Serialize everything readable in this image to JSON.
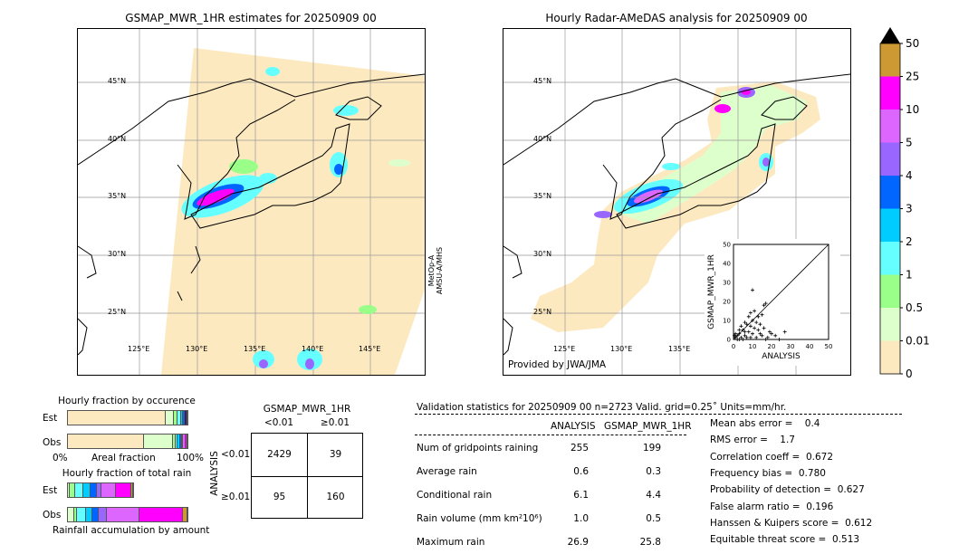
{
  "left_map": {
    "title": "GSMAP_MWR_1HR estimates for 20250909 00",
    "side_label": "MetOp-A\nAMSU-A/MHS",
    "lat_labels": [
      "45°N",
      "40°N",
      "35°N",
      "30°N",
      "25°N"
    ],
    "lon_labels": [
      "125°E",
      "130°E",
      "135°E",
      "140°E",
      "145°E"
    ]
  },
  "right_map": {
    "title": "Hourly Radar-AMeDAS analysis for 20250909 00",
    "credit": "Provided by JWA/JMA",
    "lat_labels": [
      "45°N",
      "40°N",
      "35°N",
      "30°N",
      "25°N"
    ],
    "lon_labels": [
      "125°E",
      "130°E",
      "135°E"
    ]
  },
  "colorbar": {
    "labels": [
      "50",
      "25",
      "10",
      "5",
      "4",
      "3",
      "2",
      "1",
      "0.5",
      "0.01",
      "0"
    ],
    "colors": [
      "#fde9c0",
      "#ddffcc",
      "#99ff88",
      "#66ffff",
      "#00ccff",
      "#0066ff",
      "#9966ff",
      "#dd66ff",
      "#ff00ff",
      "#cc9933"
    ],
    "over_color": "#000000"
  },
  "chart_data": [
    {
      "type": "scatter",
      "xlabel": "ANALYSIS",
      "ylabel": "GSMAP_MWR_1HR",
      "xlim": [
        0,
        50
      ],
      "ylim": [
        0,
        50
      ],
      "xticks": [
        "0",
        "10",
        "20",
        "30",
        "40",
        "50"
      ],
      "yticks": [
        "0",
        "10",
        "20",
        "30",
        "40",
        "50"
      ],
      "points": [
        [
          10,
          26
        ],
        [
          17,
          19
        ],
        [
          16,
          18
        ],
        [
          11,
          15
        ],
        [
          9,
          14
        ],
        [
          8,
          12
        ],
        [
          13,
          12
        ],
        [
          15,
          13
        ],
        [
          10,
          10
        ],
        [
          6,
          9
        ],
        [
          12,
          9
        ],
        [
          7,
          8
        ],
        [
          14,
          8
        ],
        [
          9,
          7
        ],
        [
          4,
          7
        ],
        [
          11,
          6
        ],
        [
          16,
          6
        ],
        [
          5,
          5
        ],
        [
          13,
          5
        ],
        [
          19,
          4
        ],
        [
          8,
          4
        ],
        [
          27,
          4
        ],
        [
          20,
          3
        ],
        [
          3,
          3
        ],
        [
          15,
          2
        ],
        [
          22,
          2
        ],
        [
          6,
          2
        ],
        [
          2,
          2
        ],
        [
          24,
          0
        ],
        [
          17,
          0
        ],
        [
          12,
          1
        ],
        [
          9,
          1
        ],
        [
          4,
          1
        ],
        [
          1,
          1
        ],
        [
          2,
          0
        ],
        [
          3,
          0
        ],
        [
          5,
          0
        ],
        [
          7,
          1
        ],
        [
          1,
          3
        ],
        [
          0.5,
          2
        ],
        [
          3,
          5
        ],
        [
          6,
          4
        ],
        [
          10,
          3
        ],
        [
          14,
          3
        ],
        [
          18,
          1
        ]
      ]
    },
    {
      "type": "bar",
      "title": "Hourly fraction by occurence",
      "categories": [
        "Est",
        "Obs"
      ],
      "xlabel": "Areal fraction",
      "xticks": [
        "0%",
        "100%"
      ],
      "series": {
        "Est": [
          82,
          7,
          3,
          2.5,
          2,
          1.5,
          2
        ],
        "Obs": [
          64,
          24,
          2,
          2,
          1.7,
          1.5,
          1,
          2,
          1.8
        ]
      },
      "colors_est": [
        "#fde9c0",
        "#ddffcc",
        "#99ff88",
        "#66ffff",
        "#00ccff",
        "#0066ff",
        "#332266"
      ],
      "colors_obs": [
        "#fde9c0",
        "#ddffcc",
        "#99ff88",
        "#66ffff",
        "#00ccff",
        "#0066ff",
        "#9966ff",
        "#dd66ff",
        "#ff00ff"
      ]
    },
    {
      "type": "bar",
      "title": "Hourly fraction of total rain",
      "categories": [
        "Est",
        "Obs"
      ],
      "xlabel": "Rainfall accumulation by amount",
      "series": {
        "Est": [
          1.8,
          4.5,
          6.8,
          6.5,
          4.8,
          4,
          12.6,
          12.6,
          1.8
        ],
        "Obs": [
          5.5,
          2,
          7.5,
          5.5,
          5.3,
          6.8,
          27.1,
          36.2,
          4
        ]
      },
      "colors": [
        "#ddffcc",
        "#99ff88",
        "#66ffff",
        "#00ccff",
        "#0066ff",
        "#9966ff",
        "#dd66ff",
        "#ff00ff",
        "#cc9933"
      ]
    }
  ],
  "contingency": {
    "title": "GSMAP_MWR_1HR",
    "col_labels": [
      "<0.01",
      "≥0.01"
    ],
    "row_title": "ANALYSIS",
    "row_labels": [
      "<0.01",
      "≥0.01"
    ],
    "cells": [
      [
        "2429",
        "39"
      ],
      [
        "95",
        "160"
      ]
    ]
  },
  "stats": {
    "header": "Validation statistics for 20250909 00  n=2723 Valid. grid=0.25˚ Units=mm/hr.",
    "col1": "ANALYSIS",
    "col2": "GSMAP_MWR_1HR",
    "rows": [
      {
        "label": "Num of gridpoints raining",
        "a": "255",
        "b": "199"
      },
      {
        "label": "Average rain",
        "a": "0.6",
        "b": "0.3"
      },
      {
        "label": "Conditional rain",
        "a": "6.1",
        "b": "4.4"
      },
      {
        "label": "Rain volume (mm km²10⁶)",
        "a": "1.0",
        "b": "0.5"
      },
      {
        "label": "Maximum rain",
        "a": "26.9",
        "b": "25.8"
      }
    ],
    "scores": [
      "Mean abs error =    0.4",
      "RMS error =    1.7",
      "Correlation coeff =  0.672",
      "Frequency bias =  0.780",
      "Probability of detection =  0.627",
      "False alarm ratio =  0.196",
      "Hanssen & Kuipers score =  0.612",
      "Equitable threat score =  0.513"
    ]
  }
}
